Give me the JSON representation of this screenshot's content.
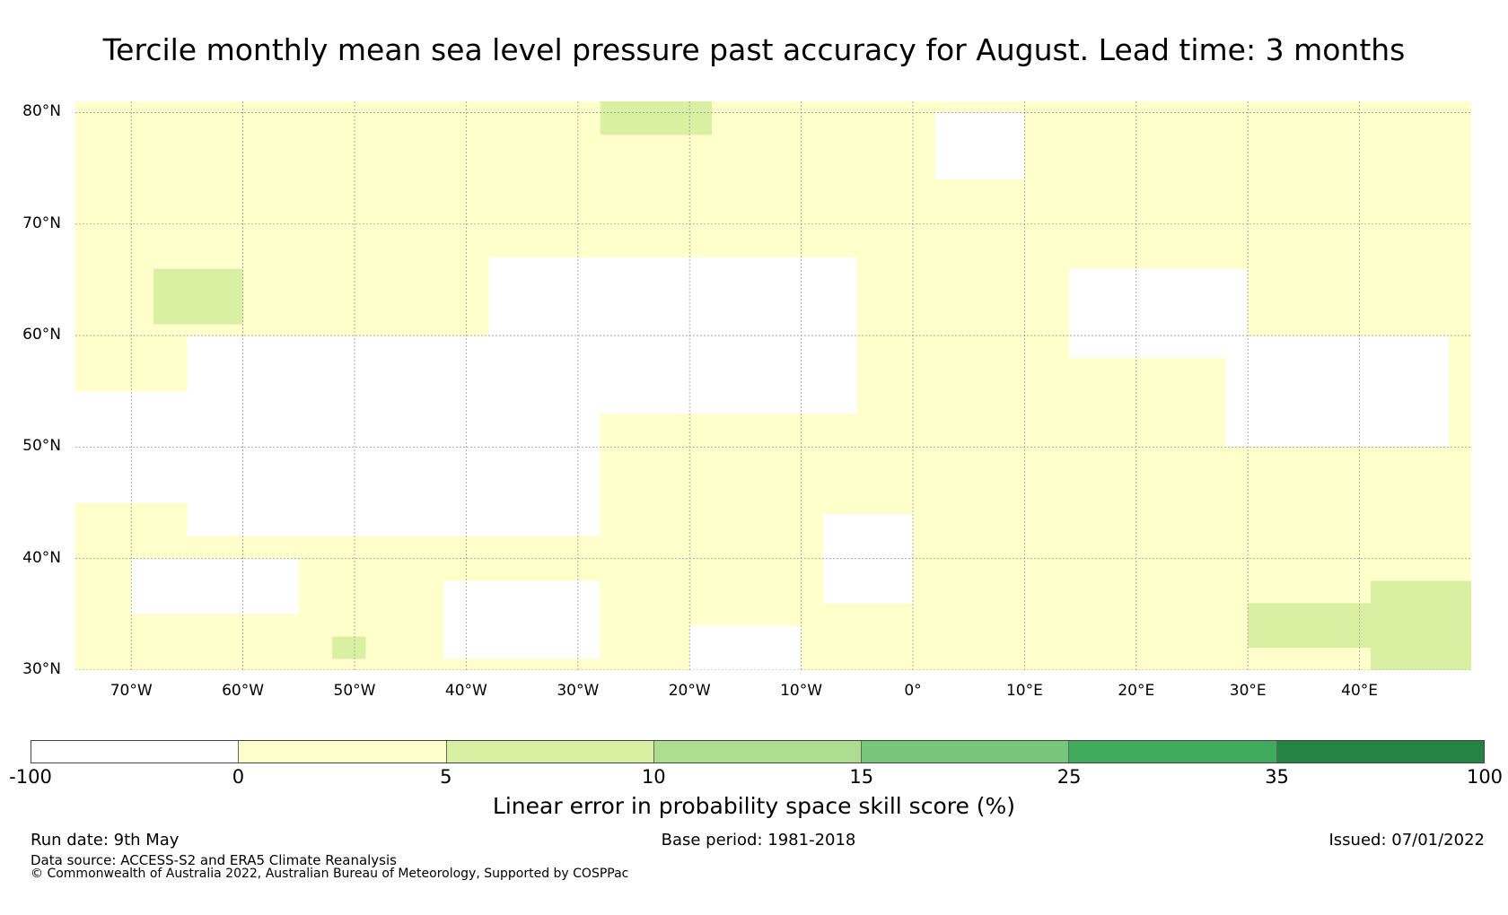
{
  "title": "Tercile monthly mean sea level pressure past accuracy for August. Lead time: 3 months",
  "map": {
    "projection": "plate-carree",
    "lon_range": [
      -75,
      50
    ],
    "lat_range": [
      30,
      81
    ],
    "lat_ticks": [
      {
        "value": 80,
        "label": "80°N"
      },
      {
        "value": 70,
        "label": "70°N"
      },
      {
        "value": 60,
        "label": "60°N"
      },
      {
        "value": 50,
        "label": "50°N"
      },
      {
        "value": 40,
        "label": "40°N"
      },
      {
        "value": 30,
        "label": "30°N"
      }
    ],
    "lon_ticks": [
      {
        "value": -70,
        "label": "70°W"
      },
      {
        "value": -60,
        "label": "60°W"
      },
      {
        "value": -50,
        "label": "50°W"
      },
      {
        "value": -40,
        "label": "40°W"
      },
      {
        "value": -30,
        "label": "30°W"
      },
      {
        "value": -20,
        "label": "20°W"
      },
      {
        "value": -10,
        "label": "10°W"
      },
      {
        "value": 0,
        "label": "0°"
      },
      {
        "value": 10,
        "label": "10°E"
      },
      {
        "value": 20,
        "label": "20°E"
      },
      {
        "value": 30,
        "label": "30°E"
      },
      {
        "value": 40,
        "label": "40°E"
      }
    ],
    "gridlines": "dotted",
    "skill_regions": [
      {
        "category": "0-5",
        "lon": [
          -75,
          50
        ],
        "lat": [
          30,
          81
        ]
      },
      {
        "category": "5-10",
        "lon": [
          -68,
          -60
        ],
        "lat": [
          61,
          66
        ]
      },
      {
        "category": "5-10",
        "lon": [
          -28,
          -18
        ],
        "lat": [
          78,
          81
        ]
      },
      {
        "category": "5-10",
        "lon": [
          -52,
          -49
        ],
        "lat": [
          31,
          33
        ]
      },
      {
        "category": "5-10",
        "lon": [
          30,
          41
        ],
        "lat": [
          32,
          36
        ]
      },
      {
        "category": "5-10",
        "lon": [
          41,
          50
        ],
        "lat": [
          30,
          38
        ]
      },
      {
        "category": "-100-0",
        "lon": [
          -65,
          -28
        ],
        "lat": [
          42,
          60
        ]
      },
      {
        "category": "-100-0",
        "lon": [
          -38,
          -5
        ],
        "lat": [
          53,
          67
        ]
      },
      {
        "category": "-100-0",
        "lon": [
          -75,
          -63
        ],
        "lat": [
          45,
          55
        ]
      },
      {
        "category": "-100-0",
        "lon": [
          -42,
          -28
        ],
        "lat": [
          31,
          38
        ]
      },
      {
        "category": "-100-0",
        "lon": [
          -70,
          -55
        ],
        "lat": [
          35,
          40
        ]
      },
      {
        "category": "-100-0",
        "lon": [
          14,
          30
        ],
        "lat": [
          58,
          66
        ]
      },
      {
        "category": "-100-0",
        "lon": [
          28,
          48
        ],
        "lat": [
          50,
          60
        ]
      },
      {
        "category": "-100-0",
        "lon": [
          2,
          10
        ],
        "lat": [
          74,
          80
        ]
      },
      {
        "category": "-100-0",
        "lon": [
          -8,
          0
        ],
        "lat": [
          36,
          44
        ]
      },
      {
        "category": "-100-0",
        "lon": [
          -20,
          -10
        ],
        "lat": [
          30,
          34
        ]
      }
    ]
  },
  "colorbar": {
    "bins": [
      {
        "from": -100,
        "to": 0,
        "color": "#ffffff"
      },
      {
        "from": 0,
        "to": 5,
        "color": "#ffffcc"
      },
      {
        "from": 5,
        "to": 10,
        "color": "#d9f0a3"
      },
      {
        "from": 10,
        "to": 15,
        "color": "#addd8e"
      },
      {
        "from": 15,
        "to": 25,
        "color": "#78c679"
      },
      {
        "from": 25,
        "to": 35,
        "color": "#41ab5d"
      },
      {
        "from": 35,
        "to": 100,
        "color": "#238443"
      }
    ],
    "tick_labels": [
      "-100",
      "0",
      "5",
      "10",
      "15",
      "25",
      "35",
      "100"
    ],
    "label": "Linear error in probability space skill score (%)"
  },
  "footer": {
    "run_date": "Run date: 9th May",
    "base_period": "Base period: 1981-2018",
    "issued": "Issued: 07/01/2022",
    "data_source": "Data source: ACCESS-S2 and ERA5 Climate Reanalysis",
    "copyright": "© Commonwealth of Australia 2022, Australian Bureau of Meteorology, Supported by COSPPac"
  }
}
